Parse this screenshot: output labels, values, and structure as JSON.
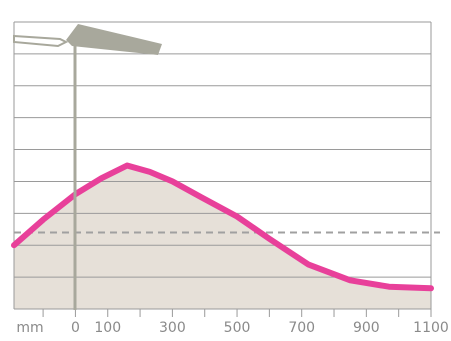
{
  "chart_data": {
    "type": "area",
    "x_unit": "mm",
    "x": [
      -190,
      -100,
      0,
      80,
      160,
      230,
      300,
      390,
      500,
      600,
      720,
      850,
      970,
      1100
    ],
    "values": [
      2.0,
      2.8,
      3.6,
      4.1,
      4.5,
      4.3,
      4.0,
      3.5,
      2.9,
      2.2,
      1.4,
      0.9,
      0.7,
      0.65
    ],
    "line_color": "#e8409a",
    "fill_color": "#e6e0d8",
    "reference_value": 2.4,
    "xlim": [
      -190,
      1100
    ],
    "ylim": [
      0,
      9
    ],
    "xticks": [
      0,
      100,
      300,
      500,
      700,
      900,
      1100
    ],
    "xminorticks": [
      -100,
      200,
      400,
      600,
      800,
      1000
    ],
    "yticks": [
      0,
      1,
      2,
      3,
      4,
      5,
      6,
      7,
      8,
      9
    ],
    "grid": true
  }
}
